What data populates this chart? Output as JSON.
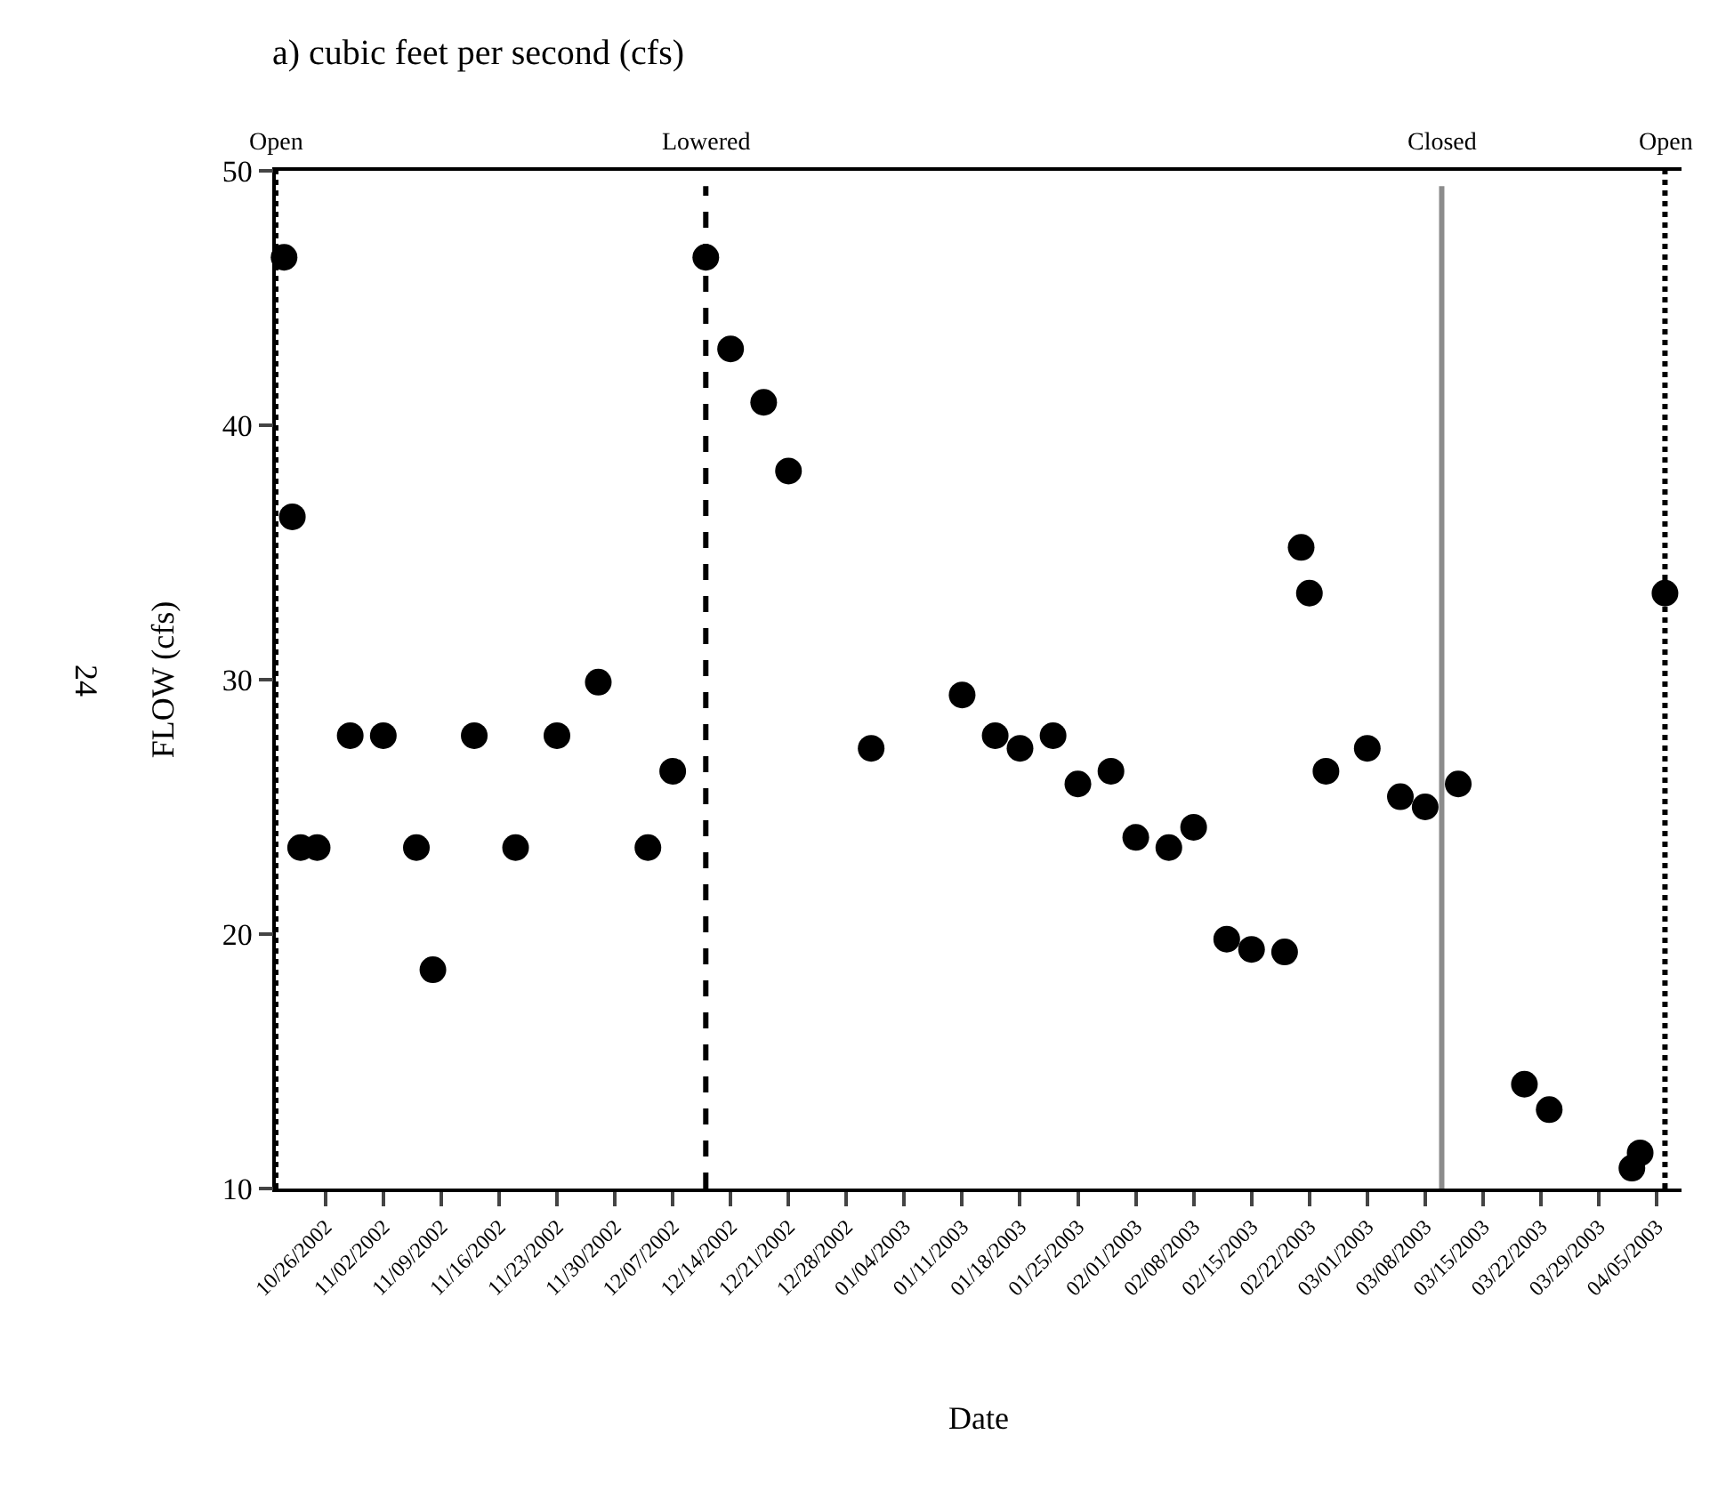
{
  "chart_data": {
    "type": "scatter",
    "title": "a) cubic feet per second (cfs)",
    "xlabel": "Date",
    "ylabel": "FLOW (cfs)",
    "x": [
      "2002-10-21",
      "2002-10-22",
      "2002-10-23",
      "2002-10-25",
      "2002-10-29",
      "2002-11-02",
      "2002-11-06",
      "2002-11-08",
      "2002-11-13",
      "2002-11-18",
      "2002-11-23",
      "2002-11-28",
      "2002-12-04",
      "2002-12-07",
      "2002-12-11",
      "2002-12-14",
      "2002-12-18",
      "2002-12-21",
      "2002-12-31",
      "2003-01-11",
      "2003-01-15",
      "2003-01-18",
      "2003-01-22",
      "2003-01-25",
      "2003-01-29",
      "2003-02-01",
      "2003-02-05",
      "2003-02-08",
      "2003-02-12",
      "2003-02-15",
      "2003-02-19",
      "2003-02-21",
      "2003-02-22",
      "2003-02-24",
      "2003-03-01",
      "2003-03-05",
      "2003-03-08",
      "2003-03-12",
      "2003-03-20",
      "2003-03-23",
      "2003-04-02",
      "2003-04-03",
      "2003-04-06"
    ],
    "series": [
      {
        "color": "#000000",
        "values": [
          46.6,
          36.4,
          23.4,
          23.4,
          27.8,
          27.8,
          23.4,
          18.6,
          27.8,
          23.4,
          27.8,
          29.9,
          23.4,
          26.4,
          46.6,
          43.0,
          40.9,
          38.2,
          27.3,
          29.4,
          27.8,
          27.3,
          27.8,
          25.9,
          26.4,
          23.8,
          23.4,
          24.2,
          19.8,
          19.4,
          19.3,
          35.2,
          33.4,
          26.4,
          27.3,
          25.4,
          25.0,
          25.9,
          14.1,
          13.1,
          10.8,
          11.4,
          33.4
        ]
      }
    ],
    "marker": "circle",
    "xlim": [
      "2002-10-20",
      "2003-04-08"
    ],
    "xticks": [
      {
        "value": "2002-10-26",
        "label": "10/26/2002"
      },
      {
        "value": "2002-11-02",
        "label": "11/02/2002"
      },
      {
        "value": "2002-11-09",
        "label": "11/09/2002"
      },
      {
        "value": "2002-11-16",
        "label": "11/16/2002"
      },
      {
        "value": "2002-11-23",
        "label": "11/23/2002"
      },
      {
        "value": "2002-11-30",
        "label": "11/30/2002"
      },
      {
        "value": "2002-12-07",
        "label": "12/07/2002"
      },
      {
        "value": "2002-12-14",
        "label": "12/14/2002"
      },
      {
        "value": "2002-12-21",
        "label": "12/21/2002"
      },
      {
        "value": "2002-12-28",
        "label": "12/28/2002"
      },
      {
        "value": "2003-01-04",
        "label": "01/04/2003"
      },
      {
        "value": "2003-01-11",
        "label": "01/11/2003"
      },
      {
        "value": "2003-01-18",
        "label": "01/18/2003"
      },
      {
        "value": "2003-01-25",
        "label": "01/25/2003"
      },
      {
        "value": "2003-02-01",
        "label": "02/01/2003"
      },
      {
        "value": "2003-02-08",
        "label": "02/08/2003"
      },
      {
        "value": "2003-02-15",
        "label": "02/15/2003"
      },
      {
        "value": "2003-02-22",
        "label": "02/22/2003"
      },
      {
        "value": "2003-03-01",
        "label": "03/01/2003"
      },
      {
        "value": "2003-03-08",
        "label": "03/08/2003"
      },
      {
        "value": "2003-03-15",
        "label": "03/15/2003"
      },
      {
        "value": "2003-03-22",
        "label": "03/22/2003"
      },
      {
        "value": "2003-03-29",
        "label": "03/29/2003"
      },
      {
        "value": "2003-04-05",
        "label": "04/05/2003"
      }
    ],
    "ylim": [
      10,
      50
    ],
    "yticks": [
      10,
      20,
      30,
      40,
      50
    ],
    "ref_lines": [
      {
        "axis": "x",
        "value": "2002-10-20",
        "label": "Open",
        "color": "#000000",
        "line_style": "dotted"
      },
      {
        "axis": "x",
        "value": "2002-12-11",
        "label": "Lowered",
        "color": "#000000",
        "line_style": "dashed"
      },
      {
        "axis": "x",
        "value": "2003-03-10",
        "label": "Closed",
        "color": "#8c8c8c",
        "line_style": "solid"
      },
      {
        "axis": "x",
        "value": "2003-04-06",
        "label": "Open",
        "color": "#000000",
        "line_style": "dotted"
      }
    ],
    "annotations": [
      "24"
    ]
  }
}
